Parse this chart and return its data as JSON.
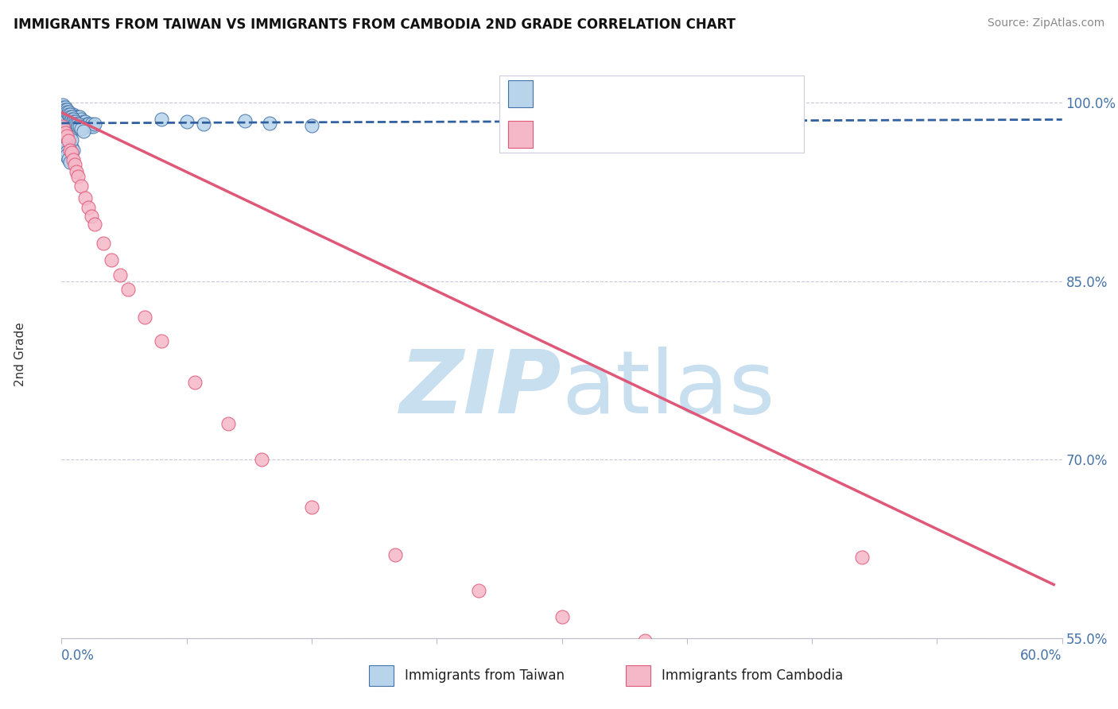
{
  "title": "IMMIGRANTS FROM TAIWAN VS IMMIGRANTS FROM CAMBODIA 2ND GRADE CORRELATION CHART",
  "source": "Source: ZipAtlas.com",
  "ylabel": "2nd Grade",
  "ytick_vals": [
    0.55,
    0.7,
    0.85,
    1.0
  ],
  "ytick_labels": [
    "55.0%",
    "70.0%",
    "85.0%",
    "100.0%"
  ],
  "xlim": [
    0.0,
    0.6
  ],
  "ylim": [
    0.575,
    1.015
  ],
  "taiwan_color": "#b8d4ea",
  "cambodia_color": "#f5b8c8",
  "taiwan_edge_color": "#4472a8",
  "cambodia_edge_color": "#e05878",
  "taiwan_line_color": "#3060a0",
  "cambodia_line_color": "#e05878",
  "watermark_color": "#c8dff0",
  "grid_color": "#c8c8d8",
  "taiwan_scatter_x": [
    0.001,
    0.002,
    0.002,
    0.002,
    0.003,
    0.003,
    0.003,
    0.004,
    0.004,
    0.004,
    0.004,
    0.005,
    0.005,
    0.005,
    0.005,
    0.006,
    0.006,
    0.006,
    0.007,
    0.007,
    0.007,
    0.008,
    0.008,
    0.008,
    0.009,
    0.009,
    0.01,
    0.01,
    0.011,
    0.011,
    0.012,
    0.012,
    0.013,
    0.014,
    0.015,
    0.016,
    0.017,
    0.018,
    0.019,
    0.02,
    0.002,
    0.003,
    0.004,
    0.005,
    0.006,
    0.007,
    0.003,
    0.004,
    0.005,
    0.006,
    0.002,
    0.003,
    0.004,
    0.002,
    0.003,
    0.002,
    0.003,
    0.003,
    0.004,
    0.005,
    0.06,
    0.075,
    0.085,
    0.11,
    0.125,
    0.15,
    0.001,
    0.001,
    0.001,
    0.001,
    0.001,
    0.002,
    0.002,
    0.002,
    0.002,
    0.003,
    0.003,
    0.004,
    0.004,
    0.005,
    0.005,
    0.006,
    0.006,
    0.007,
    0.007,
    0.008,
    0.008,
    0.009,
    0.01,
    0.01,
    0.011,
    0.012,
    0.013
  ],
  "taiwan_scatter_y": [
    0.99,
    0.99,
    0.985,
    0.98,
    0.992,
    0.988,
    0.983,
    0.992,
    0.988,
    0.984,
    0.98,
    0.99,
    0.986,
    0.982,
    0.978,
    0.988,
    0.984,
    0.98,
    0.99,
    0.986,
    0.982,
    0.988,
    0.984,
    0.98,
    0.988,
    0.984,
    0.988,
    0.984,
    0.988,
    0.984,
    0.986,
    0.982,
    0.984,
    0.984,
    0.982,
    0.982,
    0.98,
    0.982,
    0.98,
    0.982,
    0.975,
    0.972,
    0.969,
    0.966,
    0.963,
    0.96,
    0.978,
    0.975,
    0.972,
    0.969,
    0.968,
    0.965,
    0.962,
    0.958,
    0.955,
    0.962,
    0.959,
    0.956,
    0.953,
    0.95,
    0.986,
    0.984,
    0.982,
    0.985,
    0.983,
    0.981,
    0.998,
    0.996,
    0.994,
    0.992,
    0.988,
    0.996,
    0.994,
    0.992,
    0.99,
    0.994,
    0.992,
    0.992,
    0.99,
    0.99,
    0.988,
    0.988,
    0.986,
    0.986,
    0.984,
    0.984,
    0.982,
    0.982,
    0.982,
    0.98,
    0.98,
    0.978,
    0.976
  ],
  "cambodia_scatter_x": [
    0.001,
    0.002,
    0.003,
    0.004,
    0.005,
    0.006,
    0.007,
    0.008,
    0.009,
    0.01,
    0.012,
    0.014,
    0.016,
    0.018,
    0.02,
    0.025,
    0.03,
    0.035,
    0.04,
    0.05,
    0.06,
    0.08,
    0.1,
    0.12,
    0.15,
    0.2,
    0.25,
    0.3,
    0.35,
    0.48
  ],
  "cambodia_scatter_y": [
    0.98,
    0.975,
    0.972,
    0.968,
    0.96,
    0.958,
    0.952,
    0.948,
    0.942,
    0.938,
    0.93,
    0.92,
    0.912,
    0.905,
    0.898,
    0.882,
    0.868,
    0.855,
    0.843,
    0.82,
    0.8,
    0.765,
    0.73,
    0.7,
    0.66,
    0.62,
    0.59,
    0.568,
    0.548,
    0.618
  ],
  "taiwan_trend_x": [
    0.0,
    0.6
  ],
  "taiwan_trend_y": [
    0.983,
    0.986
  ],
  "cambodia_trend_x": [
    0.0,
    0.595
  ],
  "cambodia_trend_y": [
    0.992,
    0.595
  ]
}
